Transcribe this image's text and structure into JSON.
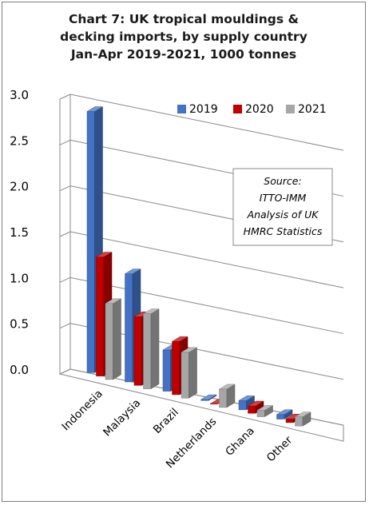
{
  "chart_data": {
    "type": "bar",
    "title_lines": [
      "Chart 7: UK tropical mouldings &",
      "decking imports, by supply country",
      "Jan-Apr 2019-2021, 1000 tonnes"
    ],
    "categories": [
      "Indonesia",
      "Malaysia",
      "Brazil",
      "Netherlands",
      "Ghana",
      "Other"
    ],
    "series": [
      {
        "name": "2019",
        "values": [
          2.85,
          1.18,
          0.45,
          0.01,
          0.1,
          0.05
        ],
        "color": "#4472c4"
      },
      {
        "name": "2020",
        "values": [
          1.3,
          0.75,
          0.58,
          0.0,
          0.08,
          0.04
        ],
        "color": "#c00000"
      },
      {
        "name": "2021",
        "values": [
          0.83,
          0.82,
          0.5,
          0.2,
          0.07,
          0.1
        ],
        "color": "#a6a6a6"
      }
    ],
    "yticks": [
      "0.0",
      "0.5",
      "1.0",
      "1.5",
      "2.0",
      "2.5",
      "3.0"
    ],
    "ylim": [
      0,
      3.0
    ],
    "legend_position": "top-right",
    "grid": true,
    "annotation": [
      "Source:",
      "ITTO-IMM",
      "Analysis of UK",
      "HMRC Statistics"
    ]
  }
}
